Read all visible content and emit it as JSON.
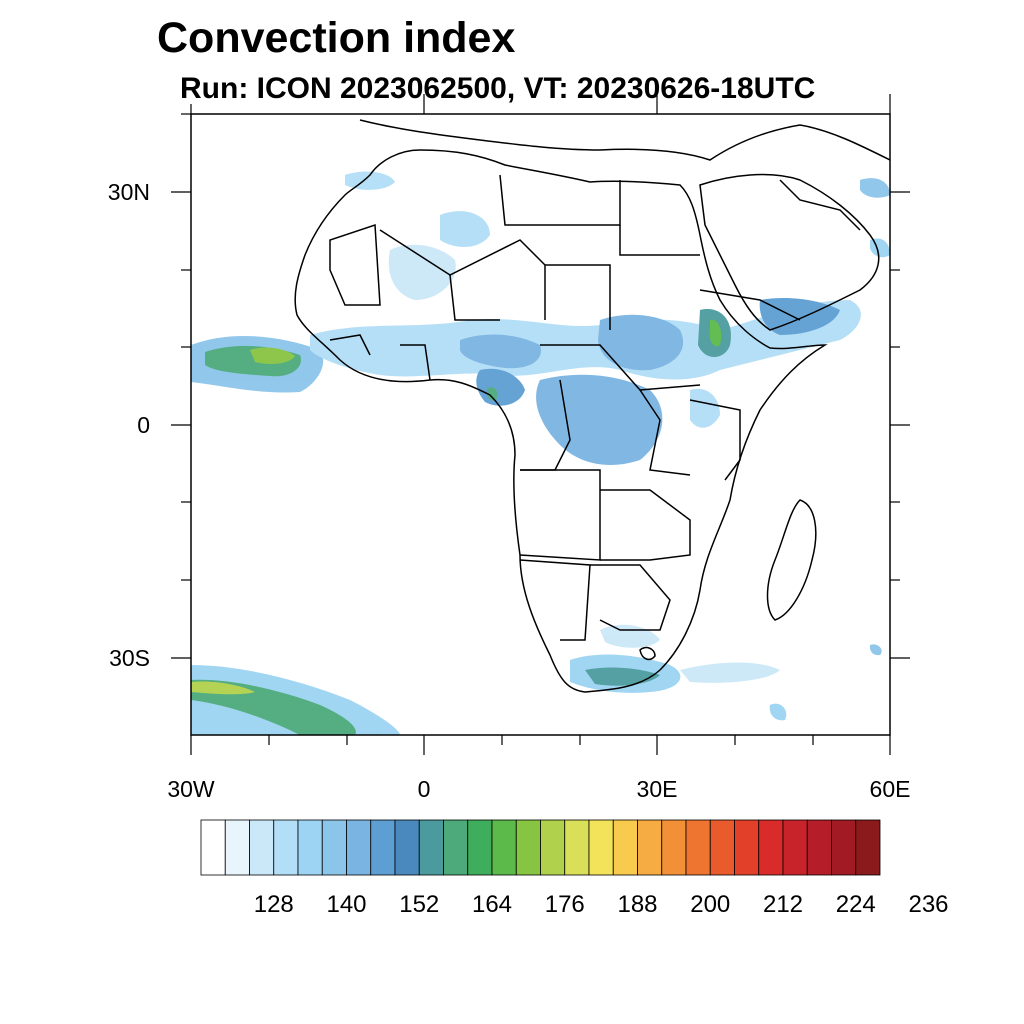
{
  "title": "Convection index",
  "subtitle": "Run: ICON 2023062500,  VT: 20230626-18UTC",
  "map": {
    "lat_labels": [
      "30N",
      "0",
      "30S"
    ],
    "lon_labels": [
      "30W",
      "0",
      "30E",
      "60E"
    ],
    "extent": {
      "lon_min": -30,
      "lon_max": 60,
      "lat_min": -40,
      "lat_max": 40
    }
  },
  "colorbar": {
    "labels": [
      "128",
      "140",
      "152",
      "164",
      "176",
      "188",
      "200",
      "212",
      "224",
      "236"
    ],
    "colors": [
      "#ffffff",
      "#e8f5fd",
      "#cbe8f8",
      "#b2def7",
      "#9dd4f3",
      "#8cc5ea",
      "#7ab4e2",
      "#5e9fd3",
      "#4a89bd",
      "#4b9b9e",
      "#4caa7b",
      "#3fae5c",
      "#5bba4a",
      "#87c442",
      "#b0d14c",
      "#d9df58",
      "#f2e35a",
      "#f8ca4e",
      "#f6ac43",
      "#f29037",
      "#ee7530",
      "#e95a2c",
      "#e34029",
      "#d82b2a",
      "#c8222b",
      "#b51d29",
      "#a11a24",
      "#8b1a1c"
    ]
  }
}
